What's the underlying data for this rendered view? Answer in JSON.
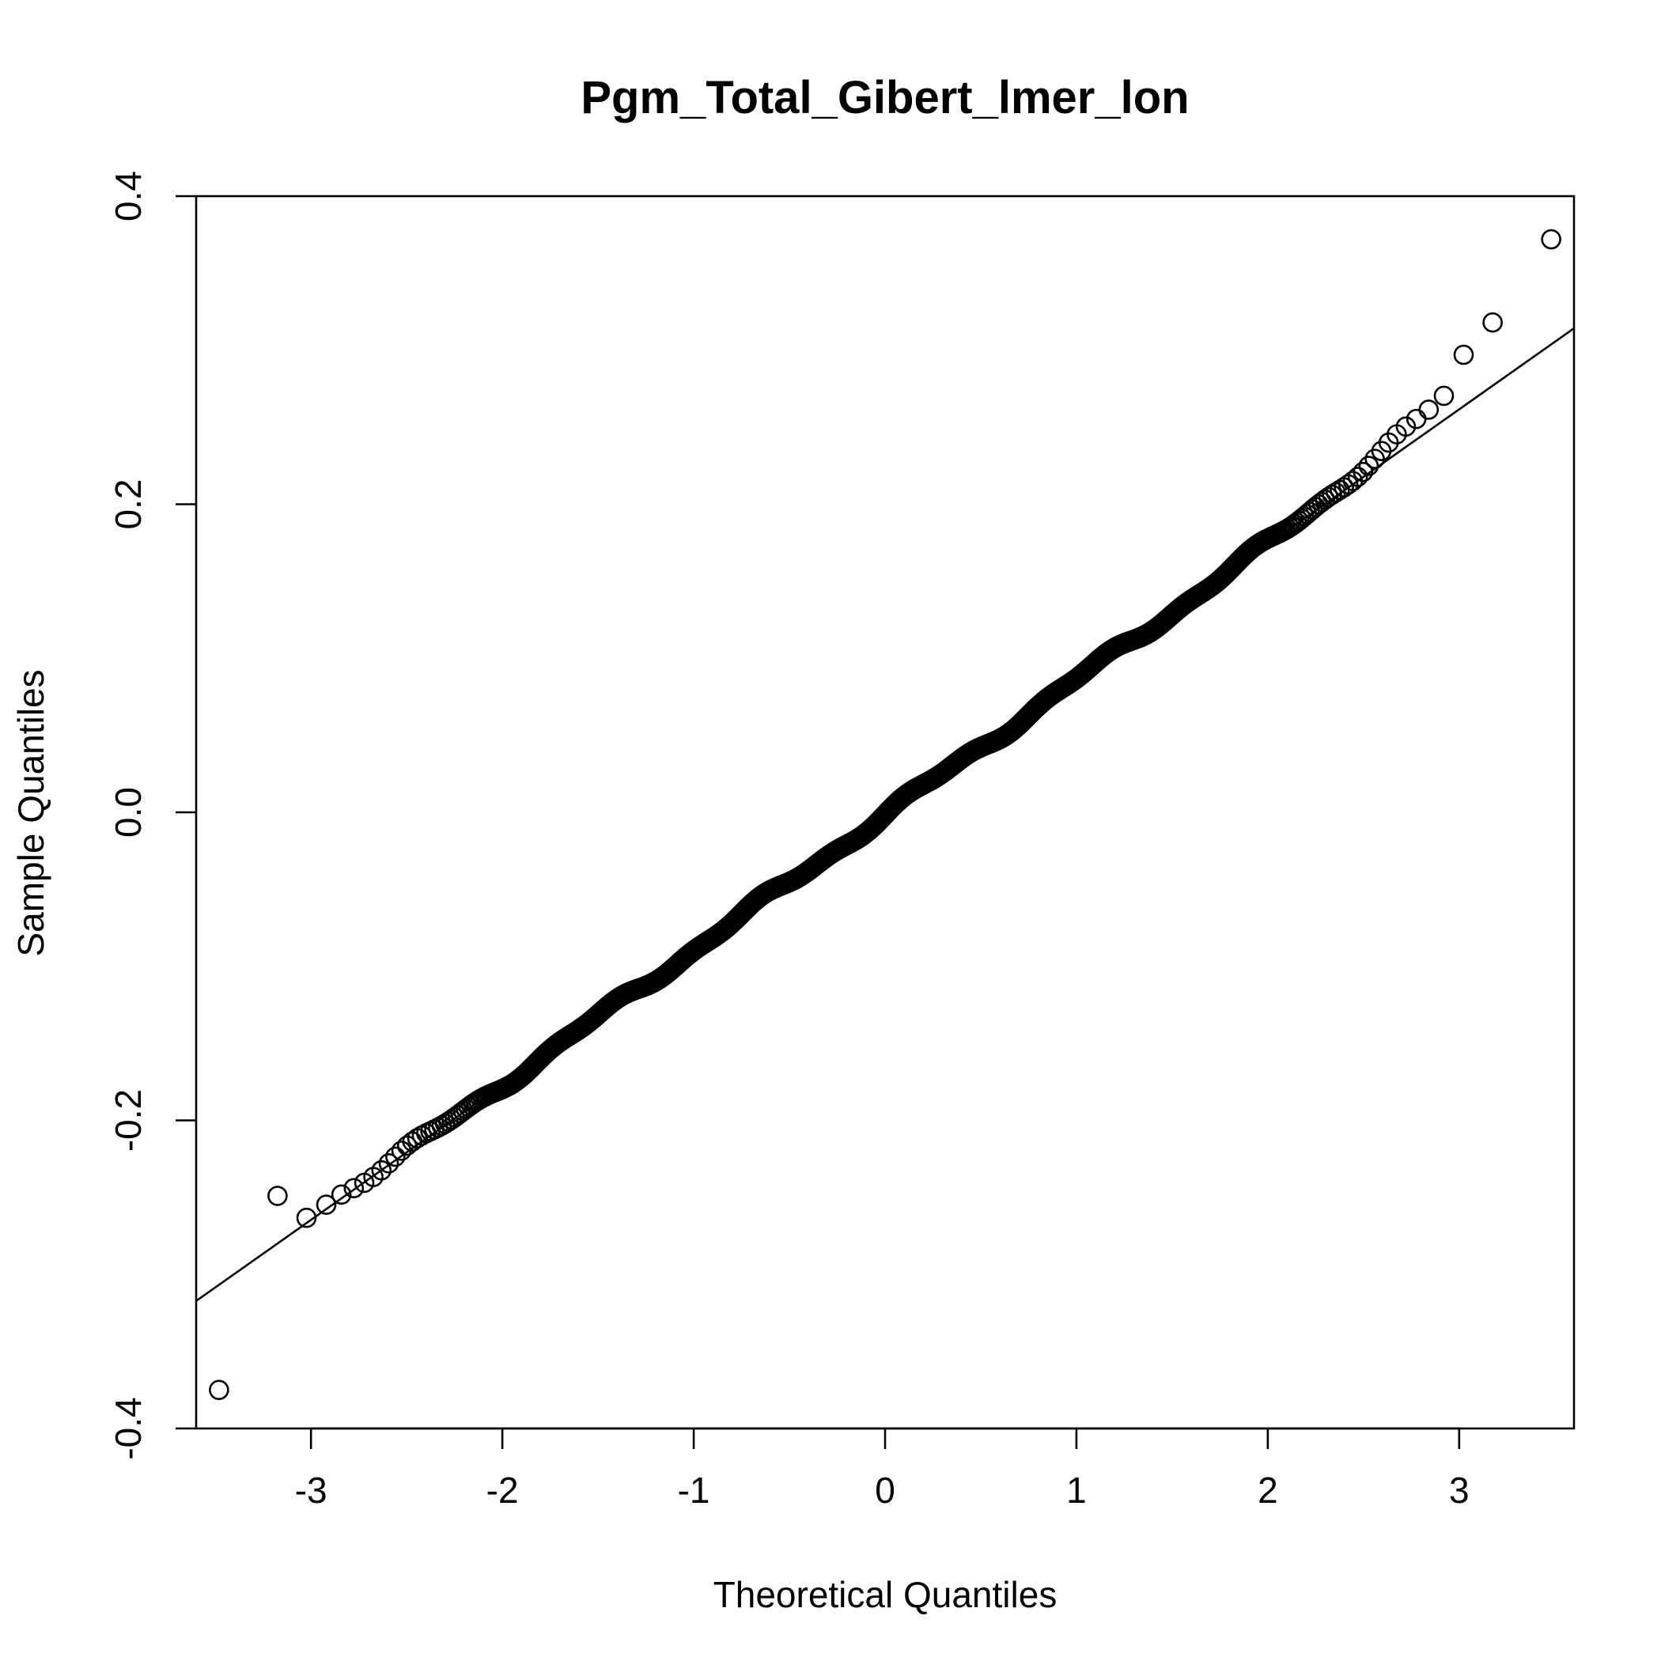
{
  "chart_data": {
    "type": "scatter",
    "title": "Pgm_Total_Gibert_lmer_lon",
    "xlabel": "Theoretical Quantiles",
    "ylabel": "Sample Quantiles",
    "xlim": [
      -3.6,
      3.6
    ],
    "ylim": [
      -0.4,
      0.4
    ],
    "xticks": [
      -3,
      -2,
      -1,
      0,
      1,
      2,
      3
    ],
    "xtick_labels": [
      "-3",
      "-2",
      "-1",
      "0",
      "1",
      "2",
      "3"
    ],
    "yticks": [
      -0.4,
      -0.2,
      0.0,
      0.2,
      0.4
    ],
    "ytick_labels": [
      "-0.4",
      "-0.2",
      "0.0",
      "0.2",
      "0.4"
    ],
    "reference_line": {
      "intercept": -0.0015,
      "slope": 0.0877
    },
    "n_points": 2000,
    "grid": false,
    "legend": "none"
  }
}
